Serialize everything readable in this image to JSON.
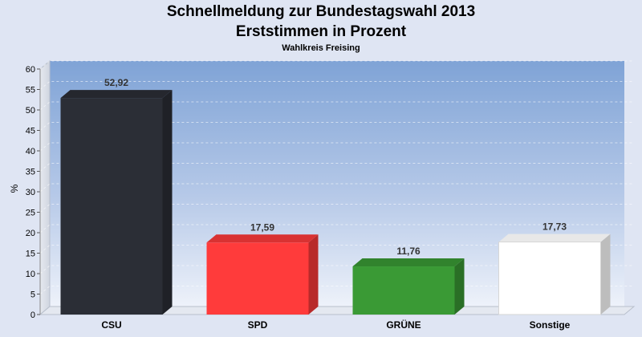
{
  "chart_data": {
    "type": "bar",
    "title": "Schnellmeldung zur Bundestagswahl 2013",
    "title2": "Erststimmen in Prozent",
    "subtitle": "Wahlkreis Freising",
    "ylabel": "%",
    "ylim": [
      0,
      60
    ],
    "yticks": [
      0,
      5,
      10,
      15,
      20,
      25,
      30,
      35,
      40,
      45,
      50,
      55,
      60
    ],
    "categories": [
      "CSU",
      "SPD",
      "GRÜNE",
      "Sonstige"
    ],
    "values": [
      52.92,
      17.59,
      11.76,
      17.73
    ],
    "value_labels": [
      "52,92",
      "17,59",
      "11,76",
      "17,73"
    ],
    "colors": [
      "#2b2e36",
      "#ff3b3b",
      "#3a9a35",
      "#ffffff"
    ],
    "grid": true
  }
}
